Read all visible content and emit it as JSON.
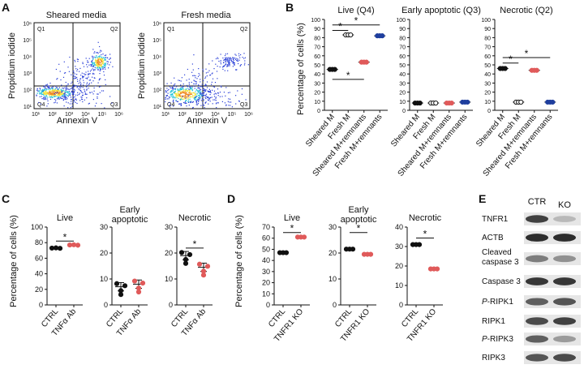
{
  "colors": {
    "black": "#111111",
    "red": "#e05a5a",
    "blue": "#1f3f9e",
    "flowBlue": "#2a3fd8",
    "flowCyan": "#24c3d8",
    "flowYellow": "#f2e33a",
    "flowOrange": "#f08a24"
  },
  "panels": {
    "A": {
      "letter": "A",
      "plots": [
        {
          "title": "Sheared media",
          "quadrants": [
            "Q1",
            "Q2",
            "Q3",
            "Q4"
          ],
          "xlabel": "Annexin V",
          "ylabel": "Propidium iodide",
          "xticks": [
            "10¹",
            "10²",
            "10³",
            "10⁴",
            "10⁵",
            "10⁶"
          ],
          "yticks": [
            "10¹",
            "10²",
            "10³",
            "10⁴",
            "10⁵",
            "10⁶"
          ]
        },
        {
          "title": "Fresh media",
          "quadrants": [
            "Q1",
            "Q2",
            "Q3",
            "Q4"
          ],
          "xlabel": "Annexin V",
          "ylabel": "Propidium iodide",
          "xticks": [
            "10¹",
            "10²",
            "10³",
            "10⁴",
            "10⁵",
            "10⁶"
          ],
          "yticks": [
            "10¹",
            "10²",
            "10³",
            "10⁴",
            "10⁵",
            "10⁶"
          ]
        }
      ]
    },
    "B": {
      "letter": "B",
      "ylabel": "Percentage of cells (%)",
      "categories": [
        "Sheared M",
        "Fresh M",
        "Sheared M+remnants",
        "Fresh M+remnants"
      ],
      "yticks": [
        "0",
        "10",
        "20",
        "30",
        "40",
        "50",
        "60",
        "70",
        "80",
        "90",
        "100"
      ],
      "subplots": [
        {
          "title": "Live (Q4)",
          "means": [
            45,
            83,
            53,
            82
          ],
          "sig": [
            "*",
            "*",
            "*"
          ]
        },
        {
          "title": "Early apoptotic (Q3)",
          "means": [
            8,
            8,
            8,
            9
          ],
          "sig": []
        },
        {
          "title": "Necrotic (Q2)",
          "means": [
            46,
            9,
            44,
            9
          ],
          "sig": [
            "*",
            "*"
          ]
        }
      ]
    },
    "C": {
      "letter": "C",
      "ylabel": "Percentage of cells (%)",
      "categories": [
        "CTRL",
        "TNFα Ab"
      ],
      "subplots": [
        {
          "title": "Live",
          "yticks": [
            "0",
            "20",
            "40",
            "60",
            "80",
            "100"
          ],
          "ylim": [
            0,
            100
          ],
          "means": [
            73,
            77
          ],
          "sig": "*"
        },
        {
          "title": "Early apoptotic",
          "yticks": [
            "0",
            "10",
            "20",
            "30"
          ],
          "ylim": [
            0,
            30
          ],
          "means": [
            7,
            8
          ],
          "sig": ""
        },
        {
          "title": "Necrotic",
          "yticks": [
            "0",
            "10",
            "20",
            "30"
          ],
          "ylim": [
            0,
            30
          ],
          "means": [
            19,
            14.5
          ],
          "sig": "*"
        }
      ]
    },
    "D": {
      "letter": "D",
      "ylabel": "Percentage of cells (%)",
      "categories": [
        "CTRL",
        "TNFR1 KO"
      ],
      "subplots": [
        {
          "title": "Live",
          "yticks": [
            "0",
            "10",
            "20",
            "30",
            "40",
            "50",
            "60",
            "70"
          ],
          "ylim": [
            0,
            70
          ],
          "means": [
            47,
            61
          ],
          "sig": "*"
        },
        {
          "title": "Early apoptotic",
          "yticks": [
            "0",
            "10",
            "20",
            "30"
          ],
          "ylim": [
            0,
            30
          ],
          "means": [
            21.5,
            19.5
          ],
          "sig": "*"
        },
        {
          "title": "Necrotic",
          "yticks": [
            "0",
            "10",
            "20",
            "30",
            "40"
          ],
          "ylim": [
            0,
            40
          ],
          "means": [
            31,
            18.5
          ],
          "sig": "*"
        }
      ]
    },
    "E": {
      "letter": "E",
      "columns": [
        "CTR",
        "KO"
      ],
      "rows": [
        "TNFR1",
        "ACTB",
        "Cleaved caspase 3",
        "Caspase 3",
        "P-RIPK1",
        "RIPK1",
        "P-RIPK3",
        "RIPK3"
      ]
    }
  },
  "chart_data": [
    {
      "type": "scatter",
      "title": "Live (Q4)",
      "categories": [
        "Sheared M",
        "Fresh M",
        "Sheared M+remnants",
        "Fresh M+remnants"
      ],
      "values": [
        45,
        83,
        53,
        82
      ],
      "ylabel": "Percentage of cells (%)",
      "ylim": [
        0,
        100
      ]
    },
    {
      "type": "scatter",
      "title": "Early apoptotic (Q3)",
      "categories": [
        "Sheared M",
        "Fresh M",
        "Sheared M+remnants",
        "Fresh M+remnants"
      ],
      "values": [
        8,
        8,
        8,
        9
      ],
      "ylim": [
        0,
        100
      ]
    },
    {
      "type": "scatter",
      "title": "Necrotic (Q2)",
      "categories": [
        "Sheared M",
        "Fresh M",
        "Sheared M+remnants",
        "Fresh M+remnants"
      ],
      "values": [
        46,
        9,
        44,
        9
      ],
      "ylim": [
        0,
        100
      ]
    },
    {
      "type": "scatter",
      "title": "Live",
      "categories": [
        "CTRL",
        "TNFα Ab"
      ],
      "values": [
        73,
        77
      ],
      "ylim": [
        0,
        100
      ]
    },
    {
      "type": "scatter",
      "title": "Early apoptotic",
      "categories": [
        "CTRL",
        "TNFα Ab"
      ],
      "values": [
        7,
        8
      ],
      "ylim": [
        0,
        30
      ]
    },
    {
      "type": "scatter",
      "title": "Necrotic",
      "categories": [
        "CTRL",
        "TNFα Ab"
      ],
      "values": [
        19,
        14.5
      ],
      "ylim": [
        0,
        30
      ]
    },
    {
      "type": "scatter",
      "title": "Live",
      "categories": [
        "CTRL",
        "TNFR1 KO"
      ],
      "values": [
        47,
        61
      ],
      "ylim": [
        0,
        70
      ]
    },
    {
      "type": "scatter",
      "title": "Early apoptotic",
      "categories": [
        "CTRL",
        "TNFR1 KO"
      ],
      "values": [
        21.5,
        19.5
      ],
      "ylim": [
        0,
        30
      ]
    },
    {
      "type": "scatter",
      "title": "Necrotic",
      "categories": [
        "CTRL",
        "TNFR1 KO"
      ],
      "values": [
        31,
        18.5
      ],
      "ylim": [
        0,
        40
      ]
    }
  ]
}
